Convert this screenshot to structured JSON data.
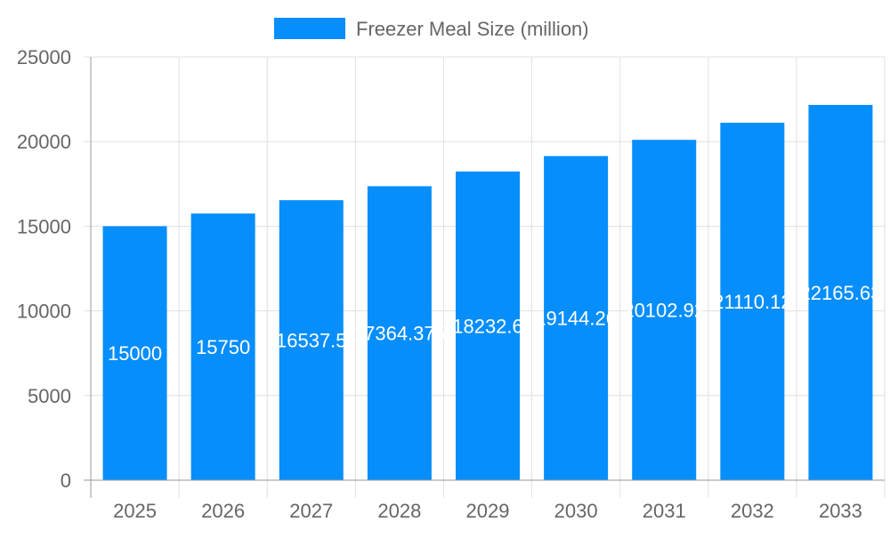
{
  "chart_data": {
    "type": "bar",
    "categories": [
      "2025",
      "2026",
      "2027",
      "2028",
      "2029",
      "2030",
      "2031",
      "2032",
      "2033"
    ],
    "series": [
      {
        "name": "Freezer Meal Size (million)",
        "values": [
          15000,
          15750,
          16537.5,
          17364.375,
          18232.6,
          19144.26,
          20102.92,
          21110.12,
          22165.63
        ],
        "data_labels": [
          "15000",
          "15750",
          "16537.5",
          "17364.375",
          "18232.6",
          "19144.26",
          "20102.92",
          "21110.12",
          "22165.63"
        ]
      }
    ],
    "title": "",
    "xlabel": "",
    "ylabel": "",
    "ylim": [
      0,
      25000
    ],
    "yticks": [
      "0",
      "5000",
      "10000",
      "15000",
      "20000",
      "25000"
    ],
    "grid": true,
    "legend": "top",
    "colors": {
      "bar": "#068efc",
      "grid": "#e0e0e0",
      "tick_text": "#666666",
      "data_label": "#ffffff"
    }
  }
}
